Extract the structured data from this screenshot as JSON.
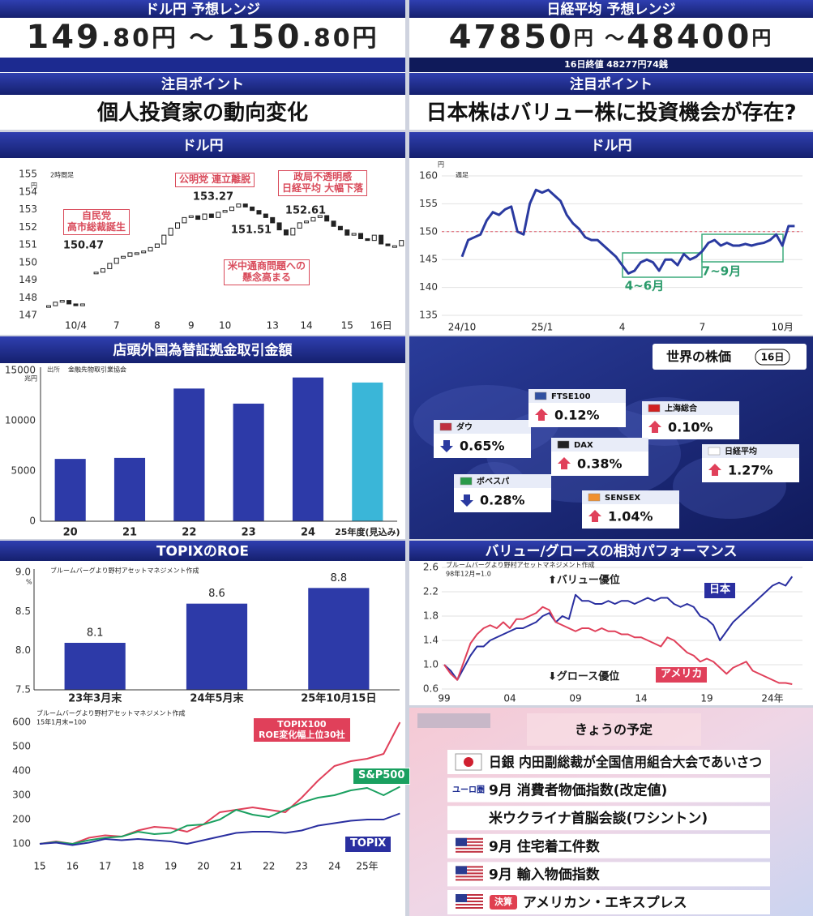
{
  "usdjpy_range": {
    "title": "ドル円 予想レンジ",
    "range": [
      "149",
      ".80円",
      " ～ ",
      "150",
      ".80円"
    ],
    "point_title": "注目ポイント",
    "point": "個人投資家の動向変化"
  },
  "nikkei_range": {
    "title": "日経平均 予想レンジ",
    "range": [
      "47850",
      "円",
      " ～",
      "48400",
      "円"
    ],
    "close": "16日終値 48277円74銭",
    "point_title": "注目ポイント",
    "point": "日本株はバリュー株に投資機会が存在?"
  },
  "chart_data": [
    {
      "type": "candlestick",
      "title": "ドル円",
      "categories": [
        null,
        null,
        null,
        null,
        "10/4",
        null,
        null,
        null,
        null,
        null,
        "7",
        null,
        null,
        null,
        null,
        null,
        "8",
        null,
        null,
        null,
        null,
        "9",
        null,
        null,
        null,
        null,
        "10",
        null,
        null,
        null,
        null,
        null,
        null,
        "13",
        null,
        null,
        null,
        null,
        "14",
        null,
        null,
        null,
        null,
        null,
        "15",
        null,
        null,
        null,
        null,
        "16日",
        null,
        null,
        null
      ],
      "values": [
        147.5,
        147.7,
        147.8,
        147.6,
        147.5,
        147.6,
        null,
        149.4,
        149.6,
        149.9,
        150.2,
        150.3,
        150.5,
        150.5,
        150.6,
        150.8,
        151.0,
        151.5,
        151.9,
        152.2,
        152.5,
        152.6,
        152.4,
        152.7,
        152.5,
        152.8,
        152.9,
        153.1,
        153.27,
        153.1,
        152.9,
        152.7,
        152.5,
        152.2,
        151.8,
        151.51,
        151.9,
        152.2,
        152.3,
        152.5,
        152.61,
        152.3,
        152.0,
        151.8,
        151.5,
        151.6,
        151.3,
        151.2,
        151.5,
        151.0,
        150.9,
        150.9,
        151.2
      ],
      "ylim": [
        147,
        155
      ],
      "yticks": [
        147,
        148,
        149,
        150,
        151,
        152,
        153,
        154,
        155
      ],
      "grid": false,
      "annotations": [
        "2時間足",
        "円",
        "自民党\n高市総裁誕生",
        "150.47",
        "公明党 連立離脱",
        "153.27",
        "政局不透明感\n日経平均 大幅下落",
        "152.61",
        "151.51",
        "米中通商問題への\n懸念高まる"
      ]
    },
    {
      "type": "line",
      "title": "ドル円",
      "color": "#2a3aa0",
      "categories": [
        "24/10",
        null,
        null,
        null,
        null,
        null,
        null,
        null,
        null,
        null,
        null,
        null,
        null,
        "25/1",
        null,
        null,
        null,
        null,
        null,
        null,
        null,
        null,
        null,
        null,
        null,
        null,
        "4",
        null,
        null,
        null,
        null,
        null,
        null,
        null,
        null,
        null,
        null,
        null,
        null,
        "7",
        null,
        null,
        null,
        null,
        null,
        null,
        null,
        null,
        null,
        null,
        null,
        null,
        "10月",
        null,
        null
      ],
      "values": [
        145.5,
        148.5,
        149.0,
        149.5,
        152.0,
        153.5,
        153.0,
        154.0,
        154.5,
        150.0,
        149.5,
        155.0,
        157.5,
        157.0,
        157.5,
        156.5,
        155.5,
        153.0,
        151.5,
        150.5,
        149.0,
        148.5,
        148.5,
        147.5,
        146.5,
        145.5,
        144.0,
        142.5,
        143.0,
        144.5,
        145.0,
        144.5,
        143.0,
        145.0,
        145.0,
        144.0,
        146.0,
        145.0,
        145.5,
        146.5,
        148.0,
        148.5,
        147.5,
        148.0,
        147.5,
        147.5,
        147.8,
        147.5,
        147.8,
        148.0,
        148.5,
        149.5,
        147.5,
        151.0,
        151.0
      ],
      "ylim": [
        135,
        160
      ],
      "yticks": [
        135,
        140,
        145,
        150,
        155,
        160
      ],
      "grid": true,
      "reference_line": 150,
      "annotations": [
        "円",
        "週足",
        "4~6月",
        "7~9月"
      ]
    },
    {
      "type": "bar",
      "title": "店頭外国為替証拠金取引金額",
      "categories": [
        "20",
        "21",
        "22",
        "23",
        "24",
        "25年度(見込み)"
      ],
      "values": [
        6200,
        6300,
        13200,
        11700,
        14300,
        13800
      ],
      "colors": [
        "#2d3aa8",
        "#2d3aa8",
        "#2d3aa8",
        "#2d3aa8",
        "#2d3aa8",
        "#3ab6d8"
      ],
      "ylim": [
        0,
        15000
      ],
      "yticks": [
        0,
        5000,
        10000,
        15000
      ],
      "grid": false,
      "annotations": [
        "兆円",
        "出所",
        "金融先物取引業協会"
      ]
    },
    {
      "type": "bar",
      "title": "TOPIXのROE",
      "categories": [
        "23年3月末",
        "24年5月末",
        "25年10月15日"
      ],
      "values": [
        8.1,
        8.6,
        8.8
      ],
      "colors": [
        "#2d3aa8",
        "#2d3aa8",
        "#2d3aa8"
      ],
      "data_labels": true,
      "ylim": [
        7.5,
        9.0
      ],
      "yticks": [
        7.5,
        {
          "value": 8,
          "label": "8.0"
        },
        8.5,
        {
          "value": 9,
          "label": "9.0"
        }
      ],
      "grid": false,
      "annotations": [
        "ブルームバーグより野村アセットマネジメント作成",
        "%"
      ]
    },
    {
      "type": "line",
      "title": "バリュー/グロースの相対パフォーマンス",
      "categories": [
        "99",
        null,
        null,
        null,
        null,
        null,
        null,
        null,
        null,
        null,
        "04",
        null,
        null,
        null,
        null,
        null,
        null,
        null,
        null,
        null,
        "09",
        null,
        null,
        null,
        null,
        null,
        null,
        null,
        null,
        null,
        "14",
        null,
        null,
        null,
        null,
        null,
        null,
        null,
        null,
        null,
        "19",
        null,
        null,
        null,
        null,
        null,
        null,
        null,
        null,
        null,
        "24年",
        null,
        null,
        null
      ],
      "series": [
        {
          "name": "日本",
          "color": "#2a2fa0",
          "values": [
            1.0,
            0.9,
            0.75,
            0.95,
            1.15,
            1.3,
            1.3,
            1.4,
            1.45,
            1.5,
            1.55,
            1.6,
            1.6,
            1.65,
            1.7,
            1.8,
            1.85,
            1.7,
            1.8,
            1.75,
            2.15,
            2.05,
            2.05,
            2.0,
            2.0,
            2.05,
            2.0,
            2.05,
            2.05,
            2.0,
            2.05,
            2.1,
            2.05,
            2.1,
            2.1,
            2.0,
            1.95,
            2.0,
            1.95,
            1.8,
            1.75,
            1.65,
            1.4,
            1.55,
            1.7,
            1.8,
            1.9,
            2.0,
            2.1,
            2.2,
            2.3,
            2.35,
            2.3,
            2.45
          ]
        },
        {
          "name": "アメリカ",
          "color": "#e0405a",
          "values": [
            1.0,
            0.85,
            0.75,
            1.05,
            1.35,
            1.5,
            1.6,
            1.65,
            1.6,
            1.7,
            1.6,
            1.75,
            1.75,
            1.8,
            1.85,
            1.95,
            1.9,
            1.7,
            1.65,
            1.6,
            1.55,
            1.6,
            1.6,
            1.55,
            1.6,
            1.55,
            1.55,
            1.5,
            1.5,
            1.45,
            1.45,
            1.4,
            1.35,
            1.3,
            1.45,
            1.4,
            1.3,
            1.2,
            1.15,
            1.05,
            1.1,
            1.05,
            0.95,
            0.85,
            0.95,
            1.0,
            1.05,
            0.9,
            0.85,
            0.8,
            0.75,
            0.7,
            0.7,
            0.68
          ]
        }
      ],
      "ylim": [
        0.6,
        2.6
      ],
      "yticks": [
        0.6,
        {
          "value": 1,
          "label": "1.0"
        },
        1.4,
        1.8,
        2.2,
        2.6
      ],
      "grid": true,
      "annotations": [
        "ブルームバーグより野村アセットマネジメント作成",
        "98年12月=1.0",
        "⬆バリュー優位",
        "⬇グロース優位"
      ]
    },
    {
      "type": "line",
      "categories": [
        "15",
        null,
        "16",
        null,
        "17",
        null,
        "18",
        null,
        "19",
        null,
        "20",
        null,
        "21",
        null,
        "22",
        null,
        "23",
        null,
        "24",
        null,
        "25年",
        null,
        null
      ],
      "series": [
        {
          "name": "TOPIX100\nROE変化幅上位30社",
          "color": "#e0405a",
          "values": [
            100,
            110,
            100,
            125,
            135,
            130,
            155,
            170,
            165,
            150,
            180,
            230,
            240,
            250,
            240,
            230,
            290,
            360,
            420,
            440,
            450,
            470,
            600
          ]
        },
        {
          "name": "S&P500",
          "color": "#1aa060",
          "values": [
            100,
            108,
            100,
            115,
            125,
            130,
            150,
            140,
            145,
            175,
            180,
            200,
            240,
            220,
            210,
            240,
            270,
            290,
            300,
            320,
            330,
            300,
            335
          ]
        },
        {
          "name": "TOPIX",
          "color": "#2a2fa0",
          "values": [
            100,
            105,
            95,
            105,
            120,
            115,
            120,
            115,
            110,
            100,
            115,
            130,
            145,
            150,
            150,
            145,
            155,
            175,
            185,
            195,
            200,
            200,
            225
          ]
        }
      ],
      "ylim": [
        40,
        620
      ],
      "yticks": [
        100,
        200,
        300,
        400,
        500,
        600
      ],
      "grid": false,
      "annotations": [
        "ブルームバーグより野村アセットマネジメント作成",
        "15年1月末=100"
      ]
    }
  ],
  "world_stocks": {
    "title": "世界の株価",
    "date": "16日",
    "items": [
      {
        "name": "ダウ",
        "direction": "down",
        "value": "0.65%"
      },
      {
        "name": "FTSE100",
        "direction": "up",
        "value": "0.12%"
      },
      {
        "name": "上海総合",
        "direction": "up",
        "value": "0.10%"
      },
      {
        "name": "DAX",
        "direction": "up",
        "value": "0.38%"
      },
      {
        "name": "日経平均",
        "direction": "up",
        "value": "1.27%"
      },
      {
        "name": "ボベスパ",
        "direction": "down",
        "value": "0.28%"
      },
      {
        "name": "SENSEX",
        "direction": "up",
        "value": "1.04%"
      }
    ]
  },
  "schedule": {
    "title": "きょうの予定",
    "items": [
      {
        "icon": "jp",
        "text": "日銀 内田副総裁が全国信用組合大会であいさつ"
      },
      {
        "icon": "eu",
        "icon_label": "ユーロ圏",
        "text": "9月 消費者物価指数(改定値)"
      },
      {
        "text": "米ウクライナ首脳会談(ワシントン)"
      },
      {
        "icon": "us",
        "text": "9月 住宅着工件数"
      },
      {
        "icon": "us",
        "text": "9月 輸入物価指数"
      },
      {
        "icon": "us",
        "badge": "決算",
        "text": "アメリカン・エキスプレス"
      }
    ]
  }
}
